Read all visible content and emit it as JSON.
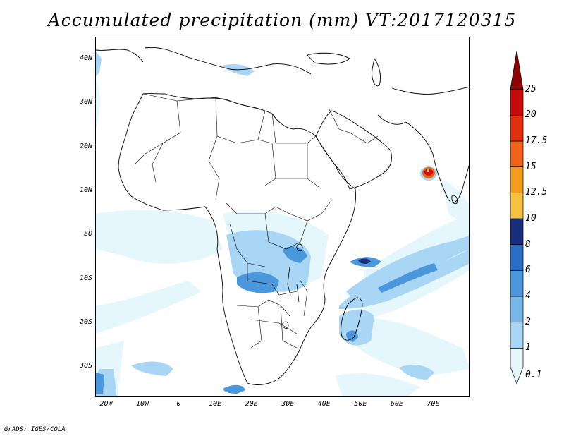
{
  "title": "Accumulated precipitation (mm) VT:2017120315",
  "credit": "GrADS: IGES/COLA",
  "map": {
    "lon_range": [
      -23,
      80
    ],
    "lat_range": [
      -37,
      45
    ],
    "lat_ticks": [
      {
        "value": 40,
        "label": "40N"
      },
      {
        "value": 30,
        "label": "30N"
      },
      {
        "value": 20,
        "label": "20N"
      },
      {
        "value": 10,
        "label": "10N"
      },
      {
        "value": 0,
        "label": "EQ"
      },
      {
        "value": -10,
        "label": "10S"
      },
      {
        "value": -20,
        "label": "20S"
      },
      {
        "value": -30,
        "label": "30S"
      }
    ],
    "lon_ticks": [
      {
        "value": -20,
        "label": "20W"
      },
      {
        "value": -10,
        "label": "10W"
      },
      {
        "value": 0,
        "label": "0"
      },
      {
        "value": 10,
        "label": "10E"
      },
      {
        "value": 20,
        "label": "20E"
      },
      {
        "value": 30,
        "label": "30E"
      },
      {
        "value": 40,
        "label": "40E"
      },
      {
        "value": 50,
        "label": "50E"
      },
      {
        "value": 60,
        "label": "60E"
      },
      {
        "value": 70,
        "label": "70E"
      }
    ]
  },
  "colorbar": {
    "levels": [
      "0.1",
      "1",
      "2",
      "4",
      "6",
      "8",
      "10",
      "12.5",
      "15",
      "17.5",
      "20",
      "25"
    ],
    "colors": [
      "#e6f6fd",
      "#a8d6f4",
      "#78b8ea",
      "#4a97dc",
      "#2a6fc6",
      "#1a2e7e",
      "#f6c040",
      "#f59d1e",
      "#f0641a",
      "#e2300e",
      "#c80a0a",
      "#8e0404"
    ]
  },
  "colors": {
    "land_outline": "#000000",
    "light_rain": "#e6f6fd",
    "moderate_rain": "#a8d6f4",
    "heavy_rain": "#4a97dc"
  }
}
